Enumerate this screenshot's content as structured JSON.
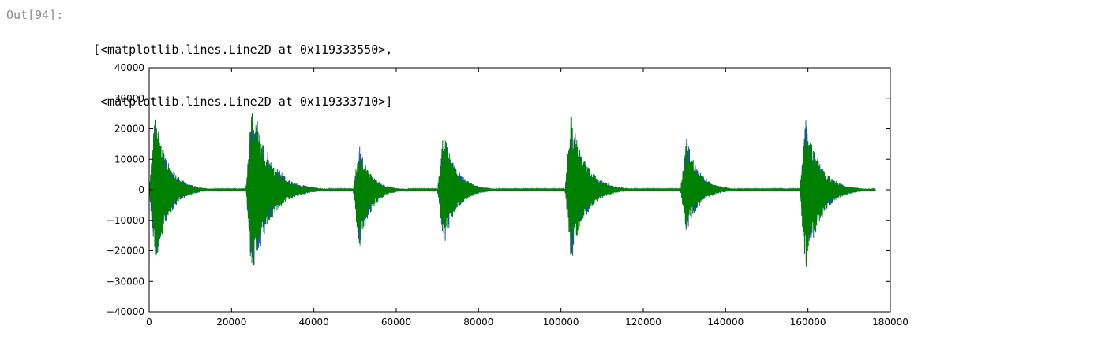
{
  "output": {
    "prompt": "Out[94]:",
    "lines": [
      "[<matplotlib.lines.Line2D at 0x119333550>,",
      " <matplotlib.lines.Line2D at 0x119333710>]"
    ]
  },
  "chart_data": {
    "type": "line",
    "title": "",
    "xlabel": "",
    "ylabel": "",
    "xlim": [
      0,
      180000
    ],
    "ylim": [
      -40000,
      40000
    ],
    "xticks": [
      0,
      20000,
      40000,
      60000,
      80000,
      100000,
      120000,
      140000,
      160000,
      180000
    ],
    "yticks": [
      40000,
      30000,
      20000,
      10000,
      0,
      -10000,
      -20000,
      -30000,
      -40000
    ],
    "xtick_labels": [
      "0",
      "20000",
      "40000",
      "60000",
      "80000",
      "100000",
      "120000",
      "140000",
      "160000",
      "180000"
    ],
    "ytick_labels": [
      "40000",
      "30000",
      "20000",
      "10000",
      "0",
      "−10000",
      "−20000",
      "−30000",
      "−40000"
    ],
    "grid": false,
    "legend": "none",
    "series": [
      {
        "color": "#1f4fa8",
        "values_note": "",
        "bursts": [
          {
            "start": 0,
            "peak_pos": 26000,
            "peak_neg": -26000,
            "decay_len": 9000
          },
          {
            "start": 23500,
            "peak_pos": 31000,
            "peak_neg": -30500,
            "decay_len": 12000
          },
          {
            "start": 49500,
            "peak_pos": 15000,
            "peak_neg": -20500,
            "decay_len": 8000
          },
          {
            "start": 70000,
            "peak_pos": 19500,
            "peak_neg": -19500,
            "decay_len": 9000
          },
          {
            "start": 101000,
            "peak_pos": 26000,
            "peak_neg": -24000,
            "decay_len": 10000
          },
          {
            "start": 129000,
            "peak_pos": 17000,
            "peak_neg": -14500,
            "decay_len": 9000
          },
          {
            "start": 158000,
            "peak_pos": 23500,
            "peak_neg": -28500,
            "decay_len": 10000
          }
        ],
        "x_end": 176400
      },
      {
        "color": "#008000",
        "bursts": [
          {
            "start": 0,
            "peak_pos": 25000,
            "peak_neg": -25000,
            "decay_len": 9000
          },
          {
            "start": 23500,
            "peak_pos": 28000,
            "peak_neg": -28500,
            "decay_len": 12000
          },
          {
            "start": 49500,
            "peak_pos": 14500,
            "peak_neg": -20000,
            "decay_len": 8000
          },
          {
            "start": 70000,
            "peak_pos": 19000,
            "peak_neg": -18500,
            "decay_len": 9000
          },
          {
            "start": 101000,
            "peak_pos": 25500,
            "peak_neg": -23500,
            "decay_len": 10000
          },
          {
            "start": 129000,
            "peak_pos": 16500,
            "peak_neg": -14000,
            "decay_len": 9000
          },
          {
            "start": 158000,
            "peak_pos": 23000,
            "peak_neg": -28000,
            "decay_len": 10000
          }
        ],
        "x_end": 176400
      }
    ]
  }
}
